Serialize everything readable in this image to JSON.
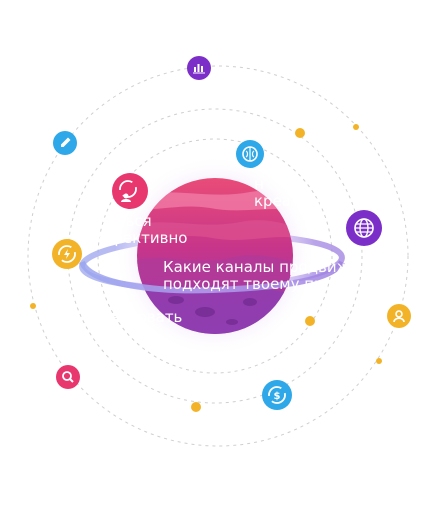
{
  "labels": {
    "creative": "н\nкреативн",
    "effective": "сдаться\nэффективно",
    "channels": "Какие каналы продвиж\nподходят твоему прод",
    "organize": "ганизовать\nно"
  },
  "icons": {
    "analytics": "bar-chart-icon",
    "brain": "brain-icon",
    "pencil": "pencil-icon",
    "refresh": "refresh-people-icon",
    "globe": "globe-icon",
    "bolt": "lightning-cycle-icon",
    "user": "user-icon",
    "search": "search-icon",
    "dollar": "dollar-cycle-icon"
  },
  "colors": {
    "purple": "#7b2fc8",
    "blue": "#2ea8e8",
    "pink": "#e8366e",
    "yellow": "#f2b329",
    "orbit": "#cfcfcf",
    "planet": "#c2337f"
  }
}
